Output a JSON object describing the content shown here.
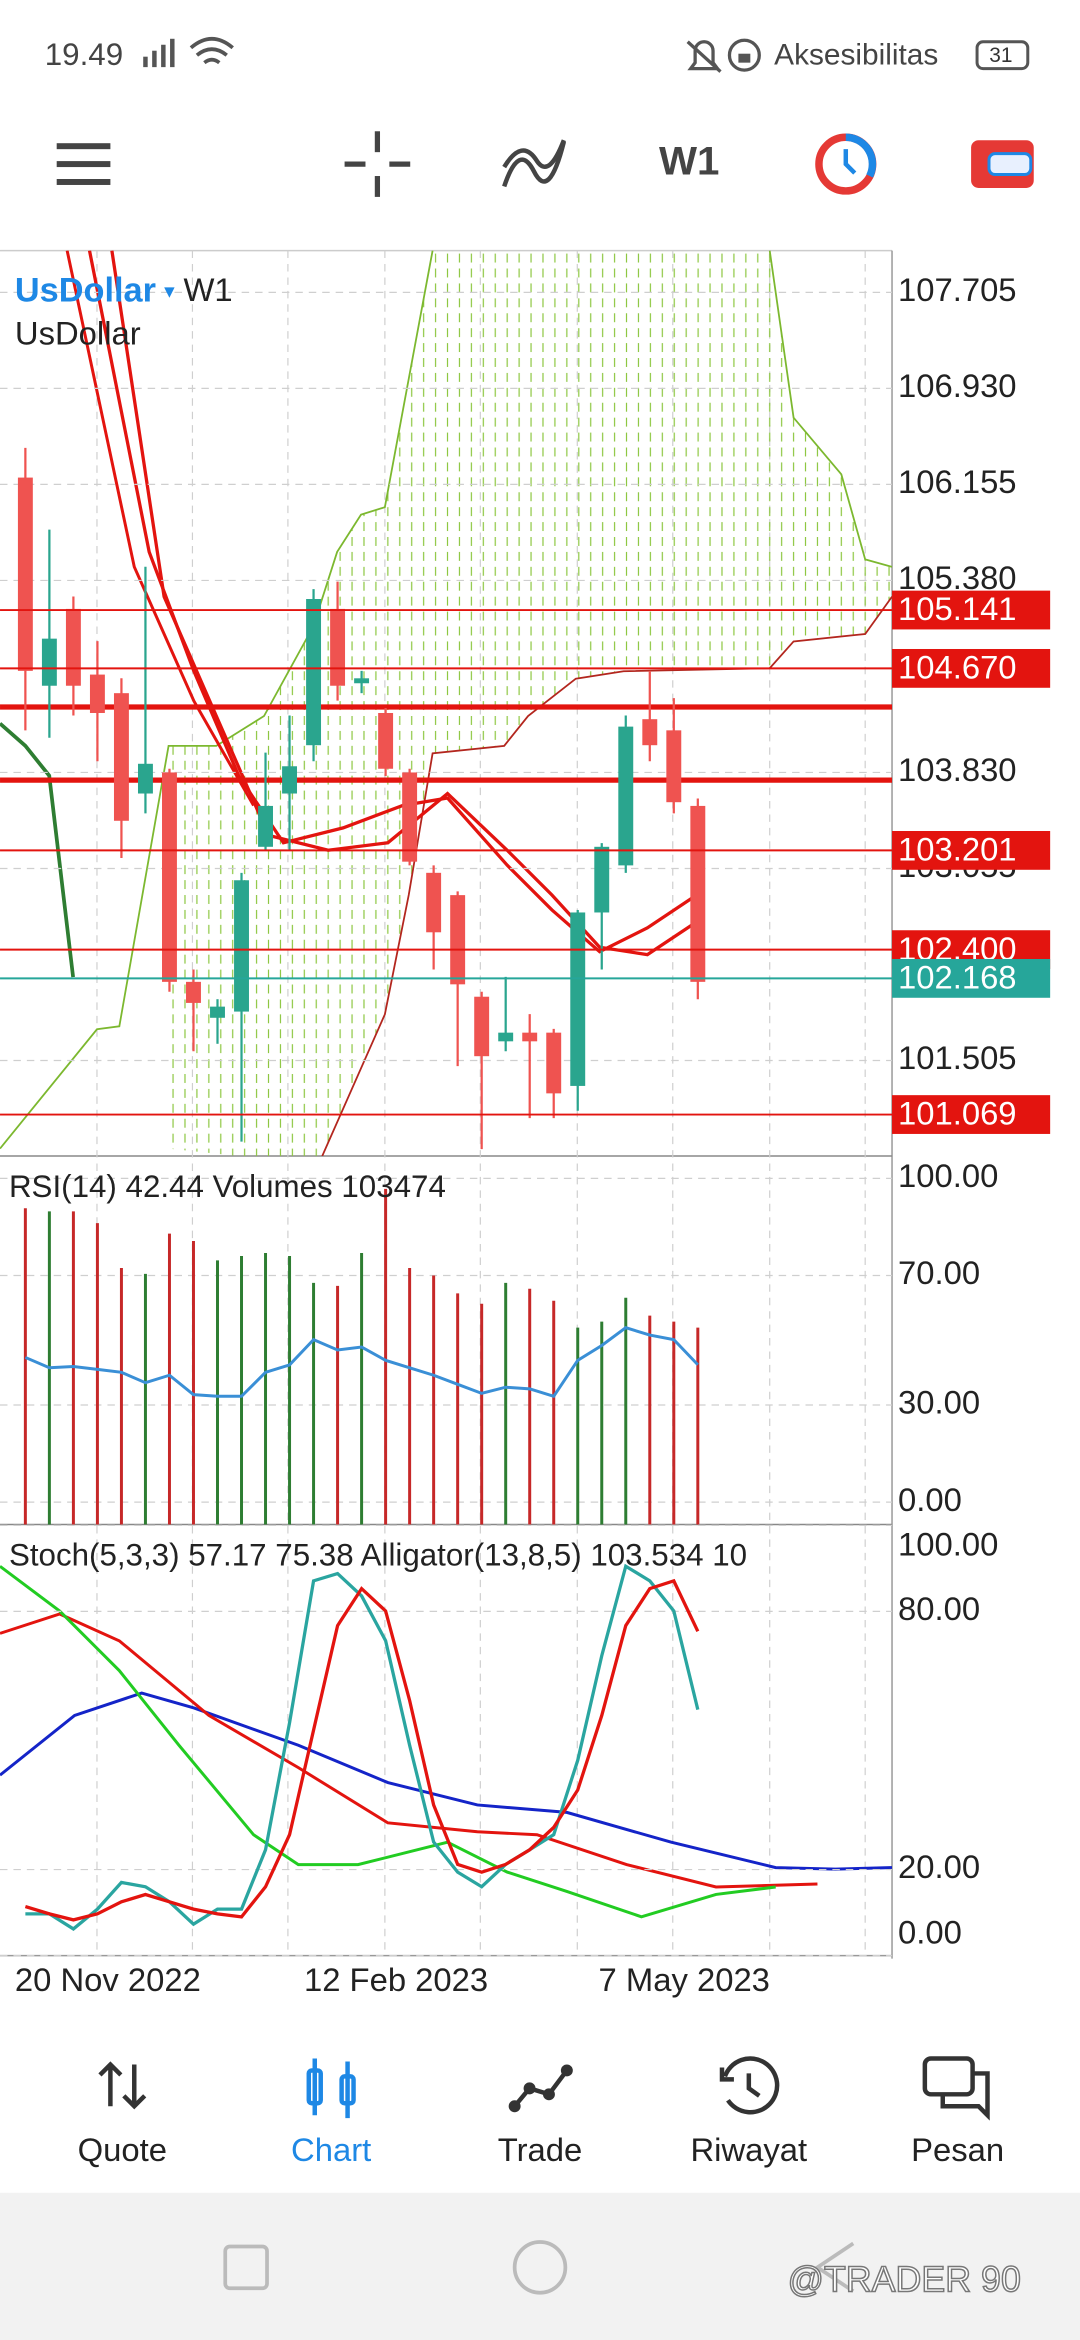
{
  "status_bar": {
    "time": "19.49",
    "accessibility": "Aksesibilitas",
    "battery": "31"
  },
  "toolbar": {
    "timeframe": "W1"
  },
  "chart": {
    "symbol": "UsDollar",
    "timeframe": "W1",
    "description": "UsDollar",
    "ylim": [
      100.734,
      108.042
    ],
    "yticks": [
      107.705,
      {
        "value": 106.93,
        "label": "106.930"
      },
      106.155,
      {
        "value": 105.38,
        "label": "105.380"
      },
      {
        "value": 103.83,
        "label": "103.830"
      },
      103.055,
      101.505
    ],
    "levels": [
      105.141,
      {
        "value": 104.67,
        "label": "104.670"
      },
      103.201,
      {
        "value": 102.4,
        "label": "102.400"
      },
      101.069
    ],
    "bid": 102.168,
    "thick_lines": [
      104.358,
      103.768
    ],
    "colors": {
      "up": "#2aa58e",
      "down": "#ef5350",
      "level": "#e3140f",
      "bid": "#26a69a"
    },
    "candles": [
      {
        "open": 106.21,
        "high": 106.45,
        "low": 104.17,
        "close": 104.65
      },
      {
        "open": 104.53,
        "high": 105.79,
        "low": 104.11,
        "close": 104.91
      },
      {
        "open": 105.15,
        "high": 105.25,
        "low": 104.29,
        "close": 104.53
      },
      {
        "open": 104.62,
        "high": 104.89,
        "low": 103.92,
        "close": 104.31
      },
      {
        "open": 104.47,
        "high": 104.59,
        "low": 103.14,
        "close": 103.44
      },
      {
        "open": 103.66,
        "high": 105.49,
        "low": 103.5,
        "close": 103.9
      },
      {
        "open": 103.83,
        "high": 103.86,
        "low": 102.06,
        "close": 102.14
      },
      {
        "open": 102.14,
        "high": 102.24,
        "low": 101.58,
        "close": 101.97
      },
      {
        "open": 101.85,
        "high": 102.0,
        "low": 101.64,
        "close": 101.94
      },
      {
        "open": 101.9,
        "high": 103.02,
        "low": 100.85,
        "close": 102.96
      },
      {
        "open": 103.23,
        "high": 103.99,
        "low": 103.2,
        "close": 103.56
      },
      {
        "open": 103.66,
        "high": 104.29,
        "low": 103.2,
        "close": 103.88
      },
      {
        "open": 104.05,
        "high": 105.31,
        "low": 103.92,
        "close": 105.23
      },
      {
        "open": 105.15,
        "high": 105.37,
        "low": 104.41,
        "close": 104.53
      },
      {
        "open": 104.55,
        "high": 104.65,
        "low": 104.47,
        "close": 104.59
      },
      {
        "open": 104.31,
        "high": 104.35,
        "low": 103.8,
        "close": 103.86
      },
      {
        "open": 103.83,
        "high": 103.86,
        "low": 103.08,
        "close": 103.11
      },
      {
        "open": 103.02,
        "high": 103.08,
        "low": 102.24,
        "close": 102.54
      },
      {
        "open": 102.84,
        "high": 102.87,
        "low": 101.46,
        "close": 102.12
      },
      {
        "open": 102.02,
        "high": 102.06,
        "low": 100.79,
        "close": 101.54
      },
      {
        "open": 101.66,
        "high": 102.18,
        "low": 101.58,
        "close": 101.73
      },
      {
        "open": 101.73,
        "high": 101.88,
        "low": 101.04,
        "close": 101.66
      },
      {
        "open": 101.73,
        "high": 101.76,
        "low": 101.04,
        "close": 101.24
      },
      {
        "open": 101.3,
        "high": 102.72,
        "low": 101.1,
        "close": 102.7
      },
      {
        "open": 102.7,
        "high": 103.26,
        "low": 102.24,
        "close": 103.23
      },
      {
        "open": 103.08,
        "high": 104.29,
        "low": 103.02,
        "close": 104.2
      },
      {
        "open": 104.26,
        "high": 104.65,
        "low": 103.92,
        "close": 104.05
      },
      {
        "open": 104.17,
        "high": 104.43,
        "low": 103.5,
        "close": 103.59
      },
      {
        "open": 103.56,
        "high": 103.62,
        "low": 102.0,
        "close": 102.14
      }
    ],
    "dates": [
      null,
      null,
      null,
      "20 Nov 2022",
      null,
      null,
      null,
      null,
      null,
      null,
      null,
      null,
      null,
      null,
      null,
      "12 Feb 2023",
      null,
      null,
      null,
      null,
      null,
      null,
      null,
      null,
      null,
      null,
      null,
      "7 May 2023",
      null
    ]
  },
  "rsi_panel": {
    "label": "RSI(14) 42.44 Volumes 103474",
    "ylim": [
      -6.9,
      106.9
    ],
    "yticks": [
      {
        "value": 100,
        "label": "100.00"
      },
      {
        "value": 70,
        "label": "70.00"
      },
      {
        "value": 30,
        "label": "30.00"
      },
      {
        "value": 0,
        "label": "0.00"
      }
    ],
    "rsi": [
      44.7,
      41.5,
      41.9,
      41.0,
      40.1,
      36.9,
      39.2,
      33.2,
      32.7,
      32.7,
      40.1,
      42.4,
      50.2,
      47.0,
      47.9,
      43.8,
      41.5,
      39.2,
      36.4,
      33.6,
      35.5,
      35.0,
      32.7,
      43.8,
      48.4,
      53.9,
      51.6,
      50.2,
      42.44
    ],
    "volumes": [
      166200,
      164600,
      164600,
      158400,
      134800,
      131700,
      152900,
      149000,
      138800,
      141100,
      142700,
      141100,
      127000,
      125400,
      142700,
      176400,
      134800,
      130900,
      121500,
      116000,
      127000,
      123900,
      117600,
      103500,
      106600,
      119200,
      109800,
      106600,
      103474
    ]
  },
  "stoch_panel": {
    "label": "Stoch(5,3,3) 57.17 75.38 Alligator(13,8,5) 103.534 10",
    "ylim": [
      0,
      100.2
    ],
    "yticks": [
      {
        "value": 100,
        "label": "100.00"
      },
      {
        "value": 80,
        "label": "80.00"
      },
      {
        "value": 20,
        "label": "20.00"
      },
      {
        "value": 0,
        "label": "0.00"
      }
    ],
    "main": [
      9.7,
      9.7,
      6.2,
      10.8,
      17.0,
      16.0,
      12.5,
      7.3,
      10.8,
      10.8,
      24.6,
      54.1,
      87.1,
      88.8,
      83.6,
      73.2,
      48.9,
      26.4,
      19.4,
      16.0,
      21.2,
      24.6,
      28.1,
      45.4,
      69.7,
      90.5,
      87.1,
      80.1,
      57.17
    ],
    "signal": [
      11.4,
      9.7,
      8.3,
      9.7,
      12.5,
      14.2,
      12.5,
      10.8,
      9.7,
      9.0,
      16.0,
      28.1,
      52.4,
      76.7,
      85.3,
      80.1,
      59.3,
      35.0,
      21.2,
      19.4,
      21.2,
      24.6,
      29.8,
      38.5,
      55.8,
      76.7,
      85.3,
      87.1,
      75.38
    ]
  },
  "nav": [
    "Quote",
    "Chart",
    "Trade",
    "Riwayat",
    "Pesan"
  ],
  "watermark": "@TRADER 90"
}
